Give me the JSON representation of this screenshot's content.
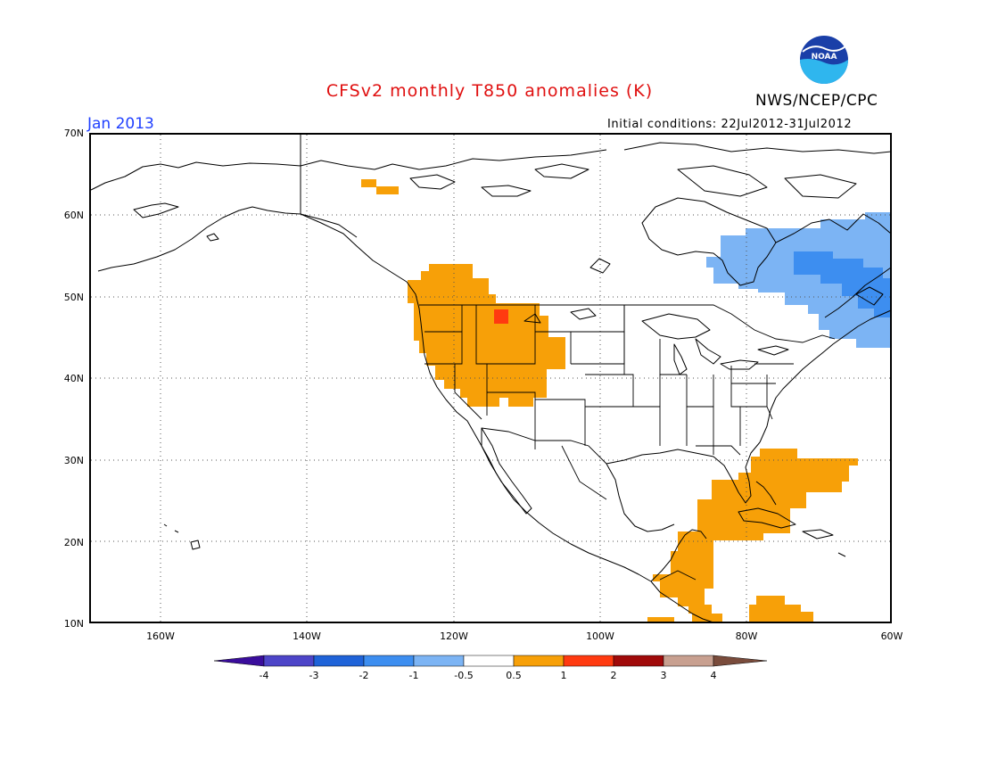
{
  "title": "CFSv2 monthly T850 anomalies (K)",
  "agency": "NWS/NCEP/CPC",
  "logo_text": "NOAA",
  "month": "Jan 2013",
  "initial_conditions": "Initial conditions: 22Jul2012-31Jul2012",
  "lat_labels": [
    "70N",
    "60N",
    "50N",
    "40N",
    "30N",
    "20N",
    "10N"
  ],
  "lon_labels": [
    "160W",
    "140W",
    "120W",
    "100W",
    "80W",
    "60W"
  ],
  "colorbar": {
    "labels": [
      "-4",
      "-3",
      "-2",
      "-1",
      "-0.5",
      "0.5",
      "1",
      "2",
      "3",
      "4"
    ],
    "colors": [
      "#3a0d9c",
      "#4d45c8",
      "#1f63d8",
      "#3d8ef0",
      "#7cb4f4",
      "#ffffff",
      "#f7a008",
      "#ff3a10",
      "#a00a0a",
      "#c8a090",
      "#7a4c3c"
    ]
  },
  "anomaly_colors": {
    "warm_05_1": "#f7a008",
    "warm_1_2": "#ff3a10",
    "cold_05_1": "#7cb4f4",
    "cold_1_2": "#3d8ef0"
  }
}
